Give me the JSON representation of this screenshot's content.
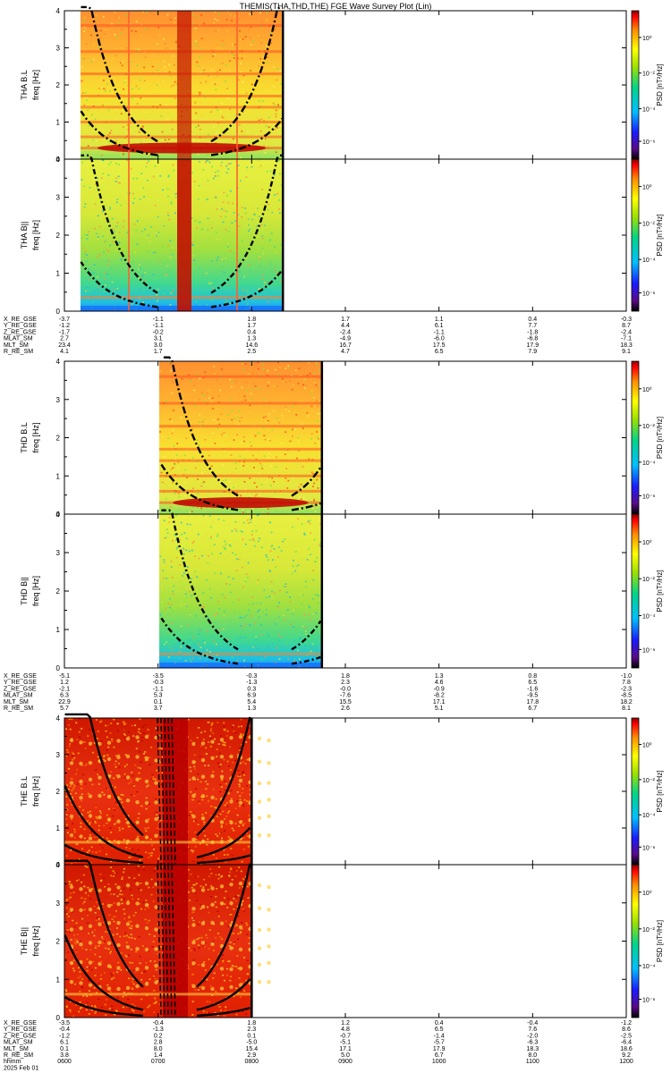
{
  "title": "THEMIS(THA,THD,THE) FGE Wave Survey Plot (Lin)",
  "chart_data": {
    "type": "heatmap",
    "title": "THEMIS(THA,THD,THE) FGE Wave Survey Plot (Lin)",
    "time_ticks": [
      "0600",
      "0700",
      "0800",
      "0900",
      "1000",
      "1100",
      "1200"
    ],
    "time_axis_label": "hhmm",
    "date_label": "2025 Feb 01",
    "y_ticks": [
      "0",
      "1",
      "2",
      "3",
      "4"
    ],
    "ylim": [
      0,
      4
    ],
    "colorbar_label": "PSD [nT²/Hz]",
    "colorbar_ticks": [
      "10⁰",
      "10⁻²",
      "10⁻⁴",
      "10⁻⁶"
    ],
    "panels": [
      {
        "probe": "THA",
        "component": "B.L",
        "name": "THA B.L",
        "ylabel": "freq [Hz]",
        "style": "green",
        "data_end": "0820"
      },
      {
        "probe": "THA",
        "component": "B||",
        "name": "THA B||",
        "ylabel": "freq [Hz]",
        "style": "green",
        "data_end": "0820"
      },
      {
        "probe": "THD",
        "component": "B.L",
        "name": "THD B.L",
        "ylabel": "freq [Hz]",
        "style": "green",
        "data_end": "0845"
      },
      {
        "probe": "THD",
        "component": "B||",
        "name": "THD B||",
        "ylabel": "freq [Hz]",
        "style": "green",
        "data_end": "0845"
      },
      {
        "probe": "THE",
        "component": "B.L",
        "name": "THE B.L",
        "ylabel": "freq [Hz]",
        "style": "red",
        "data_end": "0800"
      },
      {
        "probe": "THE",
        "component": "B||",
        "name": "THE B||",
        "ylabel": "freq [Hz]",
        "style": "red",
        "data_end": "0800"
      }
    ],
    "ephemeris_blocks": [
      {
        "probe": "THA",
        "rows": [
          {
            "label": "X_RE_GSE",
            "values": [
              "-3.7",
              "-1.1",
              "1.8",
              "1.7",
              "1.1",
              "0.4",
              "-0.3"
            ]
          },
          {
            "label": "Y_RE_GSE",
            "values": [
              "-1.2",
              "-1.1",
              "1.7",
              "4.4",
              "6.1",
              "7.7",
              "8.7"
            ]
          },
          {
            "label": "Z_RE_GSE",
            "values": [
              "-1.7",
              "-0.2",
              "0.4",
              "-2.4",
              "-1.1",
              "-1.8",
              "-2.4"
            ]
          },
          {
            "label": "MLAT_SM",
            "values": [
              "2.7",
              "3.1",
              "1.3",
              "-4.9",
              "-6.0",
              "-6.8",
              "-7.1"
            ]
          },
          {
            "label": "MLT_SM",
            "values": [
              "23.4",
              "3.0",
              "14.6",
              "16.7",
              "17.5",
              "17.9",
              "18.3"
            ]
          },
          {
            "label": "R_RE_SM",
            "values": [
              "4.1",
              "1.7",
              "2.5",
              "4.7",
              "6.5",
              "7.9",
              "9.1"
            ]
          }
        ]
      },
      {
        "probe": "THD",
        "rows": [
          {
            "label": "X_RE_GSE",
            "values": [
              "-5.1",
              "-3.5",
              "-0.3",
              "1.8",
              "1.3",
              "0.8",
              "-1.0"
            ]
          },
          {
            "label": "Y_RE_GSE",
            "values": [
              "1.2",
              "-0.3",
              "-1.3",
              "2.3",
              "4.6",
              "6.5",
              "7.8"
            ]
          },
          {
            "label": "Z_RE_GSE",
            "values": [
              "-2.1",
              "-1.1",
              "0.3",
              "-0.0",
              "-0.9",
              "-1.6",
              "-2.3"
            ]
          },
          {
            "label": "MLAT_SM",
            "values": [
              "6.3",
              "5.3",
              "6.9",
              "-7.6",
              "-8.2",
              "-9.5",
              "-8.5"
            ]
          },
          {
            "label": "MLT_SM",
            "values": [
              "22.9",
              "0.1",
              "5.4",
              "15.5",
              "17.1",
              "17.8",
              "18.2"
            ]
          },
          {
            "label": "R_RE_SM",
            "values": [
              "5.7",
              "3.7",
              "1.3",
              "2.6",
              "5.1",
              "6.7",
              "8.1"
            ]
          }
        ]
      },
      {
        "probe": "THE",
        "rows": [
          {
            "label": "X_RE_GSE",
            "values": [
              "-3.5",
              "-0.4",
              "1.8",
              "1.2",
              "0.4",
              "-0.4",
              "-1.2"
            ]
          },
          {
            "label": "Y_RE_GSE",
            "values": [
              "-0.4",
              "-1.3",
              "2.3",
              "4.8",
              "6.5",
              "7.6",
              "8.6"
            ]
          },
          {
            "label": "Z_RE_GSE",
            "values": [
              "-1.2",
              "0.2",
              "0.1",
              "-0.7",
              "-1.4",
              "-2.0",
              "-2.5"
            ]
          },
          {
            "label": "MLAT_SM",
            "values": [
              "6.1",
              "2.8",
              "-5.0",
              "-5.1",
              "-5.7",
              "-6.3",
              "-6.4"
            ]
          },
          {
            "label": "MLT_SM",
            "values": [
              "0.1",
              "8.0",
              "15.4",
              "17.1",
              "17.9",
              "18.3",
              "18.6"
            ]
          },
          {
            "label": "R_RE_SM",
            "values": [
              "3.8",
              "1.4",
              "2.9",
              "5.0",
              "6.7",
              "8.0",
              "9.2"
            ]
          }
        ]
      }
    ]
  }
}
